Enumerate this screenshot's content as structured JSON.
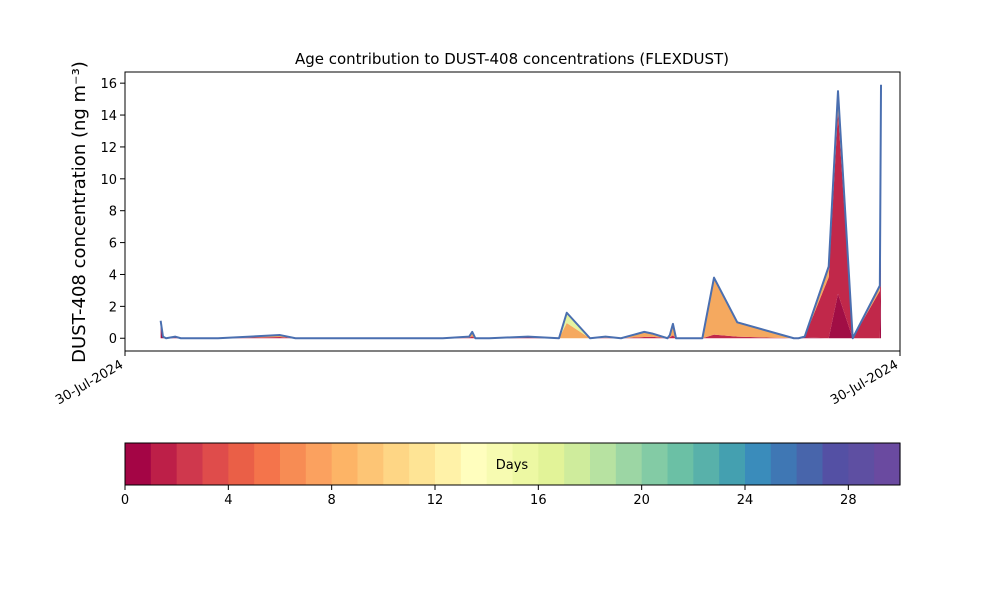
{
  "chart_data": {
    "type": "area",
    "title": "Age contribution to DUST-408 concentrations (FLEXDUST)",
    "ylabel": "DUST-408 concentration (ng m⁻³)",
    "xlabel": "",
    "x_tick_labels": [
      "30-Jul-2024",
      "30-Jul-2024"
    ],
    "ylim": [
      -0.8,
      16.7
    ],
    "y_ticks": [
      0,
      2,
      4,
      6,
      8,
      10,
      12,
      14,
      16
    ],
    "grid": false,
    "x": [
      0.046,
      0.049,
      0.053,
      0.065,
      0.072,
      0.08,
      0.12,
      0.2,
      0.22,
      0.26,
      0.41,
      0.444,
      0.448,
      0.452,
      0.456,
      0.462,
      0.47,
      0.52,
      0.56,
      0.57,
      0.6,
      0.62,
      0.64,
      0.67,
      0.68,
      0.7,
      0.703,
      0.707,
      0.711,
      0.715,
      0.72,
      0.735,
      0.738,
      0.745,
      0.76,
      0.79,
      0.863,
      0.869,
      0.877,
      0.908,
      0.92,
      0.939,
      0.974,
      0.9755
    ],
    "total": [
      1.1,
      0.1,
      0.0,
      0.1,
      0.0,
      0.0,
      0.0,
      0.2,
      0.0,
      0.0,
      0.0,
      0.1,
      0.4,
      0.0,
      0.0,
      0.0,
      0.0,
      0.1,
      0.0,
      1.6,
      0.0,
      0.1,
      0.0,
      0.4,
      0.3,
      0.0,
      0.2,
      0.9,
      0.0,
      0.0,
      0.0,
      0.0,
      0.0,
      0.0,
      3.8,
      1.0,
      0.0,
      0.0,
      0.1,
      4.5,
      15.5,
      0.0,
      3.3,
      15.9
    ],
    "age_fraction_fresh_0_2d": [
      0.7,
      0.7,
      0.7,
      0.5,
      0.5,
      0.5,
      0.0,
      0.0,
      0.0,
      0.0,
      0.0,
      0.0,
      0.0,
      0.0,
      0.0,
      0.0,
      0.0,
      0.5,
      0.95,
      0.0,
      0.0,
      0.0,
      0.0,
      0.0,
      0.0,
      0.0,
      0.0,
      0.0,
      0.0,
      0.0,
      0.0,
      0.0,
      0.0,
      0.0,
      0.0,
      0.0,
      0.0,
      0.0,
      0.5,
      0.0,
      0.18,
      0.15,
      0.0,
      0.26
    ],
    "age_fraction_days_2_8": [
      0.2,
      0.2,
      0.2,
      0.3,
      0.3,
      0.3,
      0.4,
      0.4,
      0.4,
      0.4,
      0.4,
      0.4,
      0.3,
      0.3,
      0.3,
      0.3,
      0.3,
      0.3,
      0.05,
      0.0,
      0.1,
      0.2,
      0.2,
      0.2,
      0.3,
      0.3,
      0.3,
      0.2,
      0.2,
      0.2,
      0.2,
      0.2,
      0.2,
      0.2,
      0.06,
      0.1,
      0.2,
      0.2,
      0.4,
      0.85,
      0.74,
      0.75,
      0.9,
      0.71
    ],
    "age_fraction_days_8_16": [
      0.1,
      0.1,
      0.1,
      0.2,
      0.2,
      0.2,
      0.6,
      0.6,
      0.6,
      0.6,
      0.6,
      0.6,
      0.7,
      0.7,
      0.7,
      0.7,
      0.7,
      0.2,
      0.0,
      0.6,
      0.7,
      0.7,
      0.7,
      0.7,
      0.6,
      0.6,
      0.6,
      0.7,
      0.7,
      0.7,
      0.7,
      0.7,
      0.7,
      0.7,
      0.94,
      0.9,
      0.8,
      0.8,
      0.1,
      0.15,
      0.08,
      0.1,
      0.1,
      0.03
    ],
    "age_fraction_days_16_20": [
      0.0,
      0.0,
      0.0,
      0.0,
      0.0,
      0.0,
      0.0,
      0.0,
      0.0,
      0.0,
      0.0,
      0.0,
      0.0,
      0.0,
      0.0,
      0.0,
      0.0,
      0.0,
      0.0,
      0.4,
      0.2,
      0.1,
      0.1,
      0.1,
      0.1,
      0.1,
      0.1,
      0.1,
      0.1,
      0.1,
      0.1,
      0.1,
      0.1,
      0.1,
      0.0,
      0.0,
      0.0,
      0.0,
      0.0,
      0.0,
      0.0,
      0.0,
      0.0,
      0.0
    ],
    "series_colors": [
      "#a10e45",
      "#c1284a",
      "#f5a95f",
      "#e4f3a0"
    ],
    "total_line_color": "#4a6fb0",
    "colorbar": {
      "label": "Days",
      "min": 0,
      "max": 30,
      "ticks": [
        0,
        4,
        8,
        12,
        16,
        20,
        24,
        28
      ],
      "colors": [
        "#a40545",
        "#bd1f48",
        "#cf384d",
        "#df4c4b",
        "#ea5f47",
        "#f4744b",
        "#f78c54",
        "#fba15f",
        "#fdb466",
        "#fdc575",
        "#fed685",
        "#fee495",
        "#fff2a8",
        "#fffebe",
        "#f7fbb1",
        "#edf8a3",
        "#e2f398",
        "#cfec9c",
        "#b7e2a1",
        "#9cd6a4",
        "#83cba5",
        "#6bc0a5",
        "#58b1aa",
        "#44a0b0",
        "#3a8cbb",
        "#3f77b4",
        "#4865ab",
        "#5450a4",
        "#5e4fa2",
        "#6a4aa0"
      ]
    }
  }
}
